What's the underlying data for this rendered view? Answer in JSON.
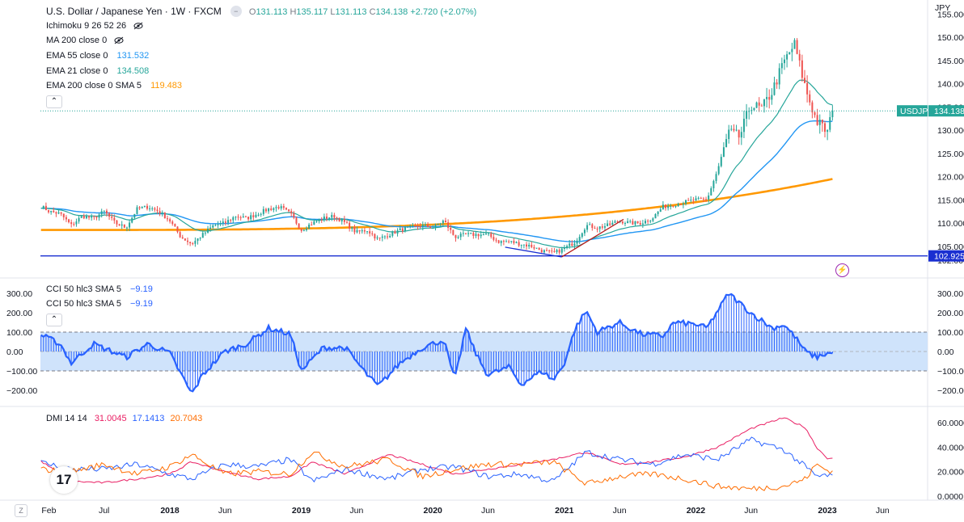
{
  "colors": {
    "up": "#26a69a",
    "down": "#ef5350",
    "ema55": "#2196f3",
    "ema21": "#26a69a",
    "ema200": "#ff9800",
    "hline": "#1a2fd1",
    "cci": "#2962ff",
    "dmi_adx": "#e91e63",
    "dmi_plus": "#2962ff",
    "dmi_minus": "#ff6d00",
    "band": "#cfe3fb",
    "lightning": "#9c27b0"
  },
  "legend": {
    "title": "U.S. Dollar / Japanese Yen · 1W · FXCM",
    "ohlc": {
      "o_label": "O",
      "o_val": "131.113",
      "h_label": "H",
      "h_val": "135.117",
      "l_label": "L",
      "l_val": "131.113",
      "c_label": "C",
      "c_val": "134.138",
      "change": "+2.720 (+2.07%)"
    },
    "ichimoku": "Ichimoku 9 26 52 26",
    "ma200": "MA 200 close 0",
    "ema55_label": "EMA 55 close 0",
    "ema55_val": "131.532",
    "ema21_label": "EMA 21 close 0",
    "ema21_val": "134.508",
    "ema200_label": "EMA 200 close 0 SMA 5",
    "ema200_val": "119.483",
    "cci1_label": "CCI 50 hlc3 SMA 5",
    "cci1_val": "−9.19",
    "cci2_label": "CCI 50 hlc3 SMA 5",
    "cci2_val": "−9.19",
    "dmi_label": "DMI 14 14",
    "dmi_adx": "31.0045",
    "dmi_plus": "17.1413",
    "dmi_minus": "20.7043"
  },
  "price_scale": {
    "currency": "JPY",
    "ticks": [
      "150.000",
      "145.000",
      "140.000",
      "135.000",
      "130.000",
      "125.000",
      "120.000",
      "115.000",
      "110.000",
      "105.000",
      "102.000"
    ],
    "partial_top": "155.000",
    "symbol_badge": "USDJPY",
    "last_price": "134.138",
    "hline_value": "102.925"
  },
  "cci_scale": {
    "ticks": [
      "300.00",
      "200.00",
      "100.00",
      "0.00",
      "−100.00",
      "−200.00"
    ]
  },
  "dmi_scale": {
    "ticks": [
      "60.0000",
      "40.0000",
      "20.0000",
      "0.0000"
    ]
  },
  "time_axis": {
    "labels": [
      "Feb",
      "Jul",
      "2018",
      "Jun",
      "2019",
      "Jun",
      "2020",
      "Jun",
      "2021",
      "Jun",
      "2022",
      "Jun",
      "2023",
      "Jun"
    ],
    "zoom_label": "Z"
  },
  "logo_text": "17",
  "chart_data": [
    {
      "type": "candlestick",
      "symbol": "USDJPY",
      "interval": "1W",
      "x_range": [
        "2017-01",
        "2023-01"
      ],
      "ylim": [
        102,
        155
      ],
      "horizontal_line": 102.925,
      "close_anchors": [
        {
          "t": "2017-01",
          "close": 114.0
        },
        {
          "t": "2017-02",
          "close": 112.5
        },
        {
          "t": "2017-03",
          "close": 112.0
        },
        {
          "t": "2017-04",
          "close": 109.5
        },
        {
          "t": "2017-05",
          "close": 111.5
        },
        {
          "t": "2017-06",
          "close": 111.0
        },
        {
          "t": "2017-07",
          "close": 112.5
        },
        {
          "t": "2017-08",
          "close": 110.0
        },
        {
          "t": "2017-09",
          "close": 109.0
        },
        {
          "t": "2017-10",
          "close": 113.0
        },
        {
          "t": "2017-11",
          "close": 113.5
        },
        {
          "t": "2017-12",
          "close": 112.5
        },
        {
          "t": "2018-01",
          "close": 110.5
        },
        {
          "t": "2018-02",
          "close": 107.0
        },
        {
          "t": "2018-03",
          "close": 105.5
        },
        {
          "t": "2018-04",
          "close": 107.5
        },
        {
          "t": "2018-05",
          "close": 109.5
        },
        {
          "t": "2018-06",
          "close": 110.0
        },
        {
          "t": "2018-07",
          "close": 111.5
        },
        {
          "t": "2018-08",
          "close": 111.0
        },
        {
          "t": "2018-09",
          "close": 112.0
        },
        {
          "t": "2018-10",
          "close": 113.0
        },
        {
          "t": "2018-11",
          "close": 113.5
        },
        {
          "t": "2018-12",
          "close": 112.0
        },
        {
          "t": "2019-01",
          "close": 108.5
        },
        {
          "t": "2019-02",
          "close": 110.0
        },
        {
          "t": "2019-03",
          "close": 111.0
        },
        {
          "t": "2019-04",
          "close": 111.5
        },
        {
          "t": "2019-05",
          "close": 110.0
        },
        {
          "t": "2019-06",
          "close": 108.0
        },
        {
          "t": "2019-07",
          "close": 108.5
        },
        {
          "t": "2019-08",
          "close": 106.5
        },
        {
          "t": "2019-09",
          "close": 107.5
        },
        {
          "t": "2019-10",
          "close": 108.5
        },
        {
          "t": "2019-11",
          "close": 109.0
        },
        {
          "t": "2019-12",
          "close": 109.5
        },
        {
          "t": "2020-01",
          "close": 109.0
        },
        {
          "t": "2020-02",
          "close": 110.5
        },
        {
          "t": "2020-03",
          "close": 107.0
        },
        {
          "t": "2020-04",
          "close": 107.5
        },
        {
          "t": "2020-05",
          "close": 107.5
        },
        {
          "t": "2020-06",
          "close": 107.5
        },
        {
          "t": "2020-07",
          "close": 106.0
        },
        {
          "t": "2020-08",
          "close": 106.0
        },
        {
          "t": "2020-09",
          "close": 105.5
        },
        {
          "t": "2020-10",
          "close": 105.0
        },
        {
          "t": "2020-11",
          "close": 104.0
        },
        {
          "t": "2020-12",
          "close": 103.5
        },
        {
          "t": "2021-01",
          "close": 104.5
        },
        {
          "t": "2021-02",
          "close": 106.0
        },
        {
          "t": "2021-03",
          "close": 109.5
        },
        {
          "t": "2021-04",
          "close": 109.0
        },
        {
          "t": "2021-05",
          "close": 109.5
        },
        {
          "t": "2021-06",
          "close": 110.5
        },
        {
          "t": "2021-07",
          "close": 110.0
        },
        {
          "t": "2021-08",
          "close": 110.0
        },
        {
          "t": "2021-09",
          "close": 111.0
        },
        {
          "t": "2021-10",
          "close": 113.5
        },
        {
          "t": "2021-11",
          "close": 114.0
        },
        {
          "t": "2021-12",
          "close": 114.5
        },
        {
          "t": "2022-01",
          "close": 115.0
        },
        {
          "t": "2022-02",
          "close": 115.0
        },
        {
          "t": "2022-03",
          "close": 121.5
        },
        {
          "t": "2022-04",
          "close": 129.5
        },
        {
          "t": "2022-05",
          "close": 128.5
        },
        {
          "t": "2022-06",
          "close": 135.5
        },
        {
          "t": "2022-07",
          "close": 134.5
        },
        {
          "t": "2022-08",
          "close": 138.5
        },
        {
          "t": "2022-09",
          "close": 144.5
        },
        {
          "t": "2022-10",
          "close": 148.5
        },
        {
          "t": "2022-11",
          "close": 139.0
        },
        {
          "t": "2022-12",
          "close": 132.0
        },
        {
          "t": "2023-01",
          "close": 129.5
        },
        {
          "t": "2023-01b",
          "close": 134.1
        }
      ],
      "ema21_end": 134.508,
      "ema55_end": 131.532,
      "ema200_end": 119.483,
      "ema200_start": 108.5,
      "last_close": 134.138
    },
    {
      "type": "area",
      "name": "CCI 50 hlc3 SMA 5",
      "ylim": [
        -230,
        330
      ],
      "bands": [
        -100,
        100
      ],
      "last_value": -9.19,
      "anchors": [
        {
          "t": "2017-01",
          "v": 90
        },
        {
          "t": "2017-03",
          "v": 40
        },
        {
          "t": "2017-04",
          "v": -60
        },
        {
          "t": "2017-06",
          "v": 40
        },
        {
          "t": "2017-09",
          "v": -30
        },
        {
          "t": "2017-11",
          "v": 40
        },
        {
          "t": "2018-01",
          "v": -10
        },
        {
          "t": "2018-03",
          "v": -220
        },
        {
          "t": "2018-04",
          "v": -120
        },
        {
          "t": "2018-06",
          "v": 0
        },
        {
          "t": "2018-08",
          "v": 40
        },
        {
          "t": "2018-10",
          "v": 120
        },
        {
          "t": "2018-12",
          "v": 90
        },
        {
          "t": "2019-01",
          "v": -100
        },
        {
          "t": "2019-03",
          "v": 20
        },
        {
          "t": "2019-05",
          "v": 20
        },
        {
          "t": "2019-07",
          "v": -120
        },
        {
          "t": "2019-08",
          "v": -180
        },
        {
          "t": "2019-10",
          "v": -60
        },
        {
          "t": "2019-12",
          "v": 20
        },
        {
          "t": "2020-02",
          "v": 60
        },
        {
          "t": "2020-03",
          "v": -150
        },
        {
          "t": "2020-04",
          "v": 120
        },
        {
          "t": "2020-05",
          "v": -20
        },
        {
          "t": "2020-06",
          "v": -120
        },
        {
          "t": "2020-08",
          "v": -80
        },
        {
          "t": "2020-09",
          "v": -170
        },
        {
          "t": "2020-11",
          "v": -100
        },
        {
          "t": "2020-12",
          "v": -150
        },
        {
          "t": "2021-01",
          "v": -60
        },
        {
          "t": "2021-02",
          "v": 120
        },
        {
          "t": "2021-03",
          "v": 210
        },
        {
          "t": "2021-04",
          "v": 100
        },
        {
          "t": "2021-06",
          "v": 150
        },
        {
          "t": "2021-08",
          "v": 90
        },
        {
          "t": "2021-10",
          "v": 80
        },
        {
          "t": "2021-11",
          "v": 150
        },
        {
          "t": "2022-01",
          "v": 140
        },
        {
          "t": "2022-02",
          "v": 120
        },
        {
          "t": "2022-04",
          "v": 300
        },
        {
          "t": "2022-06",
          "v": 200
        },
        {
          "t": "2022-08",
          "v": 120
        },
        {
          "t": "2022-09",
          "v": 140
        },
        {
          "t": "2022-10",
          "v": 80
        },
        {
          "t": "2022-11",
          "v": 0
        },
        {
          "t": "2022-12",
          "v": -30
        },
        {
          "t": "2023-01",
          "v": -9.19
        }
      ]
    },
    {
      "type": "line",
      "name": "DMI 14 14",
      "ylim": [
        0,
        67
      ],
      "series": [
        {
          "name": "ADX",
          "last": 31.0045,
          "anchors": [
            {
              "t": "2017-01",
              "v": 30
            },
            {
              "t": "2017-04",
              "v": 12
            },
            {
              "t": "2017-07",
              "v": 11
            },
            {
              "t": "2017-10",
              "v": 14
            },
            {
              "t": "2018-01",
              "v": 18
            },
            {
              "t": "2018-03",
              "v": 28
            },
            {
              "t": "2018-06",
              "v": 20
            },
            {
              "t": "2018-09",
              "v": 14
            },
            {
              "t": "2018-12",
              "v": 16
            },
            {
              "t": "2019-02",
              "v": 28
            },
            {
              "t": "2019-05",
              "v": 18
            },
            {
              "t": "2019-09",
              "v": 34
            },
            {
              "t": "2019-12",
              "v": 26
            },
            {
              "t": "2020-03",
              "v": 18
            },
            {
              "t": "2020-06",
              "v": 22
            },
            {
              "t": "2020-09",
              "v": 26
            },
            {
              "t": "2020-12",
              "v": 30
            },
            {
              "t": "2021-03",
              "v": 36
            },
            {
              "t": "2021-06",
              "v": 26
            },
            {
              "t": "2021-09",
              "v": 28
            },
            {
              "t": "2021-12",
              "v": 32
            },
            {
              "t": "2022-03",
              "v": 40
            },
            {
              "t": "2022-06",
              "v": 55
            },
            {
              "t": "2022-09",
              "v": 64
            },
            {
              "t": "2022-11",
              "v": 56
            },
            {
              "t": "2022-12",
              "v": 40
            },
            {
              "t": "2023-01",
              "v": 31
            }
          ]
        },
        {
          "name": "+DI",
          "last": 17.1413,
          "anchors": [
            {
              "t": "2017-01",
              "v": 28
            },
            {
              "t": "2017-04",
              "v": 22
            },
            {
              "t": "2017-07",
              "v": 22
            },
            {
              "t": "2017-10",
              "v": 26
            },
            {
              "t": "2018-01",
              "v": 18
            },
            {
              "t": "2018-03",
              "v": 14
            },
            {
              "t": "2018-06",
              "v": 26
            },
            {
              "t": "2018-09",
              "v": 24
            },
            {
              "t": "2018-12",
              "v": 30
            },
            {
              "t": "2019-02",
              "v": 12
            },
            {
              "t": "2019-05",
              "v": 22
            },
            {
              "t": "2019-09",
              "v": 14
            },
            {
              "t": "2019-12",
              "v": 22
            },
            {
              "t": "2020-03",
              "v": 24
            },
            {
              "t": "2020-06",
              "v": 16
            },
            {
              "t": "2020-09",
              "v": 18
            },
            {
              "t": "2020-12",
              "v": 12
            },
            {
              "t": "2021-03",
              "v": 36
            },
            {
              "t": "2021-06",
              "v": 30
            },
            {
              "t": "2021-09",
              "v": 26
            },
            {
              "t": "2021-12",
              "v": 34
            },
            {
              "t": "2022-03",
              "v": 30
            },
            {
              "t": "2022-06",
              "v": 46
            },
            {
              "t": "2022-09",
              "v": 38
            },
            {
              "t": "2022-11",
              "v": 24
            },
            {
              "t": "2022-12",
              "v": 16
            },
            {
              "t": "2023-01",
              "v": 17
            }
          ]
        },
        {
          "name": "-DI",
          "last": 20.7043,
          "anchors": [
            {
              "t": "2017-01",
              "v": 22
            },
            {
              "t": "2017-04",
              "v": 20
            },
            {
              "t": "2017-07",
              "v": 26
            },
            {
              "t": "2017-10",
              "v": 18
            },
            {
              "t": "2018-01",
              "v": 24
            },
            {
              "t": "2018-03",
              "v": 34
            },
            {
              "t": "2018-06",
              "v": 18
            },
            {
              "t": "2018-09",
              "v": 20
            },
            {
              "t": "2018-12",
              "v": 18
            },
            {
              "t": "2019-02",
              "v": 36
            },
            {
              "t": "2019-05",
              "v": 24
            },
            {
              "t": "2019-09",
              "v": 30
            },
            {
              "t": "2019-12",
              "v": 16
            },
            {
              "t": "2020-03",
              "v": 22
            },
            {
              "t": "2020-06",
              "v": 26
            },
            {
              "t": "2020-09",
              "v": 26
            },
            {
              "t": "2020-12",
              "v": 28
            },
            {
              "t": "2021-03",
              "v": 10
            },
            {
              "t": "2021-06",
              "v": 16
            },
            {
              "t": "2021-09",
              "v": 18
            },
            {
              "t": "2021-12",
              "v": 14
            },
            {
              "t": "2022-03",
              "v": 8
            },
            {
              "t": "2022-06",
              "v": 6
            },
            {
              "t": "2022-09",
              "v": 8
            },
            {
              "t": "2022-11",
              "v": 14
            },
            {
              "t": "2022-12",
              "v": 26
            },
            {
              "t": "2023-01",
              "v": 21
            }
          ]
        }
      ]
    }
  ]
}
